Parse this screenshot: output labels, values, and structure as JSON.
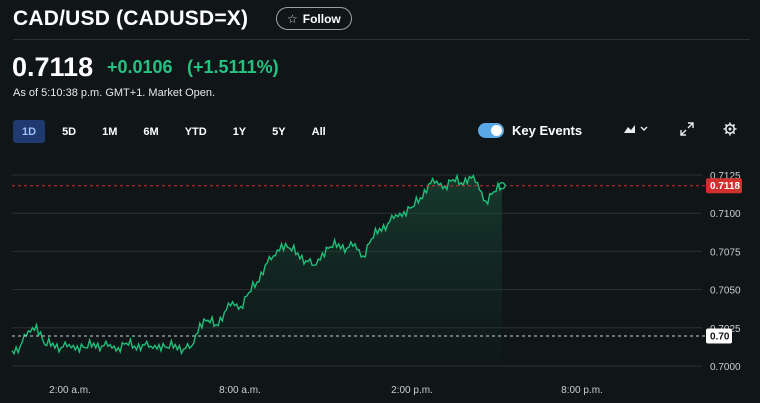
{
  "header": {
    "title": "CAD/USD (CADUSD=X)",
    "follow_label": "Follow"
  },
  "quote": {
    "price": "0.7118",
    "change": "+0.0106",
    "change_pct": "(+1.5111%)",
    "as_of": "As of 5:10:38 p.m. GMT+1. Market Open."
  },
  "ranges": [
    "1D",
    "5D",
    "1M",
    "6M",
    "YTD",
    "1Y",
    "5Y",
    "All"
  ],
  "active_range": "1D",
  "key_events": {
    "label": "Key Events",
    "enabled": true
  },
  "icons": {
    "chart_type": "mountain-chart-icon",
    "expand": "expand-icon",
    "settings": "gear-icon",
    "follow": "star-icon"
  },
  "colors": {
    "up": "#26c281",
    "current_price_tag": "#d32f2f",
    "active_range_bg": "#1e3a6e"
  },
  "chart_data": {
    "type": "area",
    "x_tick_labels": [
      "2:00 a.m.",
      "8:00 a.m.",
      "2:00 p.m.",
      "8:00 p.m."
    ],
    "y_tick_labels": [
      "0.7125",
      "0.7100",
      "0.7075",
      "0.7050",
      "0.7025",
      "0.7000"
    ],
    "ylim": [
      0.7,
      0.7125
    ],
    "current_price_label": "0.7118",
    "previous_close_label": "0.70",
    "series": [
      {
        "x": [
          0,
          1,
          2,
          3,
          4,
          5,
          6,
          7,
          8,
          9,
          10,
          11,
          12,
          13,
          14,
          15,
          16,
          17,
          18,
          19,
          20,
          21,
          22,
          23,
          24,
          25,
          26,
          27,
          28,
          29,
          30,
          31,
          32,
          33,
          34,
          35,
          36,
          37,
          38,
          39,
          40,
          41,
          42,
          43,
          44,
          45,
          46,
          47,
          48,
          49,
          50,
          51,
          52,
          53,
          54,
          55,
          56,
          57,
          58,
          59,
          60
        ],
        "values": [
          0.701,
          0.7013,
          0.7023,
          0.7027,
          0.7014,
          0.7015,
          0.7012,
          0.7014,
          0.7013,
          0.7012,
          0.7015,
          0.7013,
          0.7014,
          0.7012,
          0.7015,
          0.7013,
          0.7014,
          0.7013,
          0.7014,
          0.7012,
          0.7014,
          0.7011,
          0.7013,
          0.7028,
          0.703,
          0.7027,
          0.7035,
          0.7042,
          0.7039,
          0.7048,
          0.7055,
          0.7066,
          0.7072,
          0.708,
          0.7077,
          0.7074,
          0.7069,
          0.7066,
          0.7074,
          0.7078,
          0.708,
          0.7077,
          0.708,
          0.7072,
          0.7083,
          0.709,
          0.7093,
          0.7099,
          0.7101,
          0.7104,
          0.711,
          0.7119,
          0.7121,
          0.7118,
          0.7122,
          0.712,
          0.7124,
          0.712,
          0.7108,
          0.7114,
          0.7118
        ]
      }
    ]
  }
}
